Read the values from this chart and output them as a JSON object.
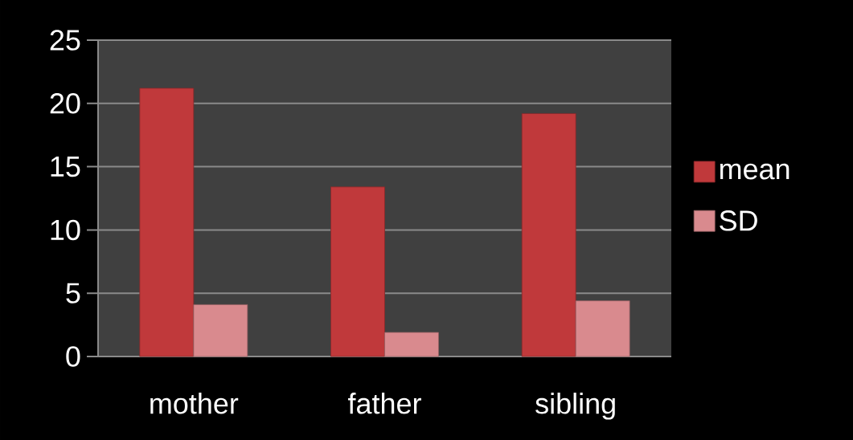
{
  "chart_data": {
    "type": "bar",
    "categories": [
      "mother",
      "father",
      "sibling"
    ],
    "series": [
      {
        "name": "mean",
        "color": "#c0393b",
        "values": [
          21.2,
          13.4,
          19.2
        ]
      },
      {
        "name": "SD",
        "color": "#d98a8e",
        "values": [
          4.1,
          1.9,
          4.4
        ]
      }
    ],
    "ylim": [
      0,
      25
    ],
    "yticks": [
      0,
      5,
      10,
      15,
      20,
      25
    ],
    "grid": "y",
    "legend": "right"
  }
}
